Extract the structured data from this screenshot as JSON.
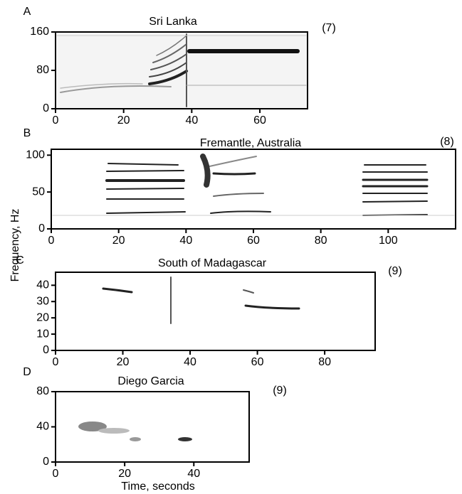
{
  "ylabel": "Frequency, Hz",
  "xlabel": "Time, seconds",
  "chart_data": [
    {
      "type": "spectrogram",
      "panel": "A",
      "title": "Sri Lanka",
      "note": "(7)",
      "xlim": [
        0,
        74
      ],
      "xticks": [
        0,
        20,
        40,
        60
      ],
      "ylim": [
        0,
        160
      ],
      "yticks": [
        0,
        80,
        160
      ]
    },
    {
      "type": "spectrogram",
      "panel": "B",
      "title": "Fremantle, Australia",
      "note": "(8)",
      "xlim": [
        0,
        120
      ],
      "xticks": [
        0,
        20,
        40,
        60,
        80,
        100
      ],
      "ylim": [
        0,
        108
      ],
      "yticks": [
        0,
        50,
        100
      ]
    },
    {
      "type": "spectrogram",
      "panel": "C",
      "title": "South of Madagascar",
      "note": "(9)",
      "xlim": [
        0,
        95
      ],
      "xticks": [
        0,
        20,
        40,
        60,
        80
      ],
      "ylim": [
        0,
        48
      ],
      "yticks": [
        0,
        10,
        20,
        30,
        40
      ]
    },
    {
      "type": "spectrogram",
      "panel": "D",
      "title": "Diego Garcia",
      "note": "(9)",
      "xlim": [
        0,
        56
      ],
      "xticks": [
        0,
        20,
        40
      ],
      "ylim": [
        0,
        80
      ],
      "yticks": [
        0,
        40,
        80
      ]
    }
  ]
}
